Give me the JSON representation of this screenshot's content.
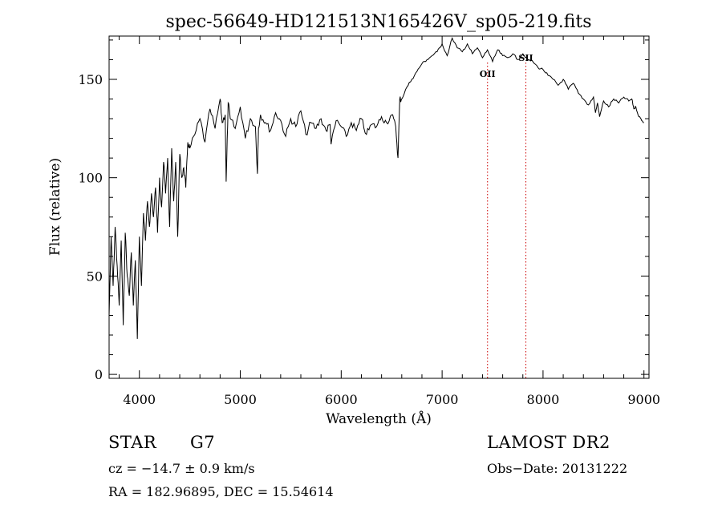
{
  "chart_data": {
    "type": "line",
    "title": "spec-56649-HD121513N165426V_sp05-219.fits",
    "xlabel": "Wavelength (Å)",
    "ylabel": "Flux (relative)",
    "xlim": [
      3700,
      9050
    ],
    "ylim": [
      -2,
      172
    ],
    "xticks": [
      4000,
      5000,
      6000,
      7000,
      8000,
      9000
    ],
    "yticks": [
      0,
      50,
      100,
      150
    ],
    "grid": false,
    "line_color": "#000000",
    "marker_color": "#cc0000",
    "spectrum": {
      "x": [
        3700,
        3720,
        3740,
        3760,
        3780,
        3800,
        3820,
        3840,
        3860,
        3880,
        3900,
        3920,
        3940,
        3960,
        3980,
        4000,
        4020,
        4040,
        4060,
        4080,
        4100,
        4120,
        4140,
        4160,
        4180,
        4200,
        4220,
        4240,
        4260,
        4280,
        4300,
        4320,
        4340,
        4360,
        4380,
        4400,
        4420,
        4440,
        4460,
        4480,
        4500,
        4550,
        4600,
        4650,
        4700,
        4750,
        4800,
        4820,
        4850,
        4860,
        4880,
        4900,
        4950,
        5000,
        5050,
        5100,
        5150,
        5170,
        5180,
        5200,
        5250,
        5300,
        5350,
        5400,
        5450,
        5500,
        5550,
        5600,
        5650,
        5700,
        5750,
        5800,
        5850,
        5890,
        5900,
        5950,
        6000,
        6050,
        6100,
        6150,
        6200,
        6250,
        6300,
        6350,
        6400,
        6450,
        6500,
        6540,
        6563,
        6580,
        6600,
        6650,
        6700,
        6750,
        6800,
        6850,
        6900,
        6950,
        7000,
        7050,
        7100,
        7150,
        7200,
        7250,
        7300,
        7350,
        7400,
        7450,
        7500,
        7550,
        7600,
        7650,
        7700,
        7750,
        7800,
        7850,
        7900,
        7950,
        8000,
        8050,
        8100,
        8150,
        8200,
        8250,
        8300,
        8350,
        8400,
        8450,
        8500,
        8520,
        8540,
        8560,
        8600,
        8650,
        8700,
        8750,
        8800,
        8850,
        8880,
        8900,
        8920,
        8950,
        8970,
        9000
      ],
      "y": [
        30,
        70,
        45,
        75,
        55,
        35,
        68,
        25,
        72,
        50,
        40,
        62,
        35,
        58,
        18,
        70,
        45,
        82,
        68,
        88,
        75,
        92,
        80,
        95,
        72,
        100,
        85,
        108,
        92,
        110,
        75,
        115,
        88,
        108,
        70,
        112,
        100,
        105,
        95,
        118,
        115,
        122,
        130,
        118,
        135,
        125,
        140,
        128,
        132,
        98,
        138,
        130,
        125,
        136,
        120,
        130,
        126,
        102,
        125,
        132,
        128,
        124,
        133,
        129,
        121,
        130,
        126,
        134,
        122,
        128,
        125,
        130,
        124,
        127,
        117,
        129,
        126,
        121,
        128,
        124,
        130,
        122,
        127,
        126,
        131,
        128,
        132,
        126,
        110,
        140,
        140,
        146,
        150,
        154,
        158,
        160,
        162,
        164,
        168,
        162,
        171,
        166,
        164,
        168,
        163,
        166,
        161,
        165,
        159,
        165,
        162,
        161,
        163,
        160,
        163,
        160,
        159,
        156,
        155,
        152,
        150,
        147,
        150,
        145,
        148,
        143,
        140,
        137,
        141,
        133,
        138,
        131,
        139,
        136,
        140,
        138,
        141,
        139,
        140,
        135,
        136,
        131,
        130,
        128
      ]
    },
    "annotations": [
      {
        "label": "OII",
        "x": 7450
      },
      {
        "label": "SII",
        "x": 7830
      }
    ]
  },
  "info": {
    "object_type": "STAR",
    "subclass": "G7",
    "survey": "LAMOST DR2",
    "redshift_line": "cz = −14.7 ± 0.9 km/s",
    "obs_date_line": "Obs−Date: 20131222",
    "coords_line": "RA = 182.96895, DEC =  15.54614"
  }
}
